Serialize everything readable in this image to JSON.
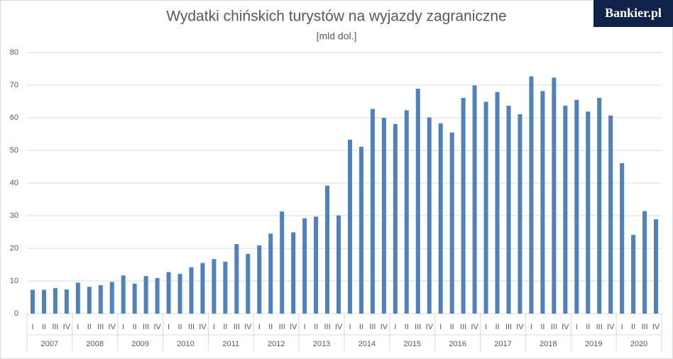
{
  "chart_data": {
    "type": "bar",
    "title": "Wydatki chińskich turystów na wyjazdy zagraniczne",
    "subtitle": "[mld dol.]",
    "logo": "Bankier.pl",
    "color": "#4f81bd",
    "grid": true,
    "ylim": [
      0,
      80
    ],
    "yticks": [
      0,
      10,
      20,
      30,
      40,
      50,
      60,
      70,
      80
    ],
    "groups": [
      "2007",
      "2008",
      "2009",
      "2010",
      "2011",
      "2012",
      "2013",
      "2014",
      "2015",
      "2016",
      "2017",
      "2018",
      "2019",
      "2020"
    ],
    "categories": [
      "I",
      "II",
      "III",
      "IV",
      "I",
      "II",
      "III",
      "IV",
      "I",
      "II",
      "III",
      "IV",
      "I",
      "II",
      "III",
      "IV",
      "I",
      "II",
      "III",
      "IV",
      "I",
      "II",
      "III",
      "IV",
      "I",
      "II",
      "III",
      "IV",
      "I",
      "II",
      "III",
      "IV",
      "I",
      "II",
      "III",
      "IV",
      "I",
      "II",
      "III",
      "IV",
      "I",
      "II",
      "III",
      "IV",
      "I",
      "II",
      "III",
      "IV",
      "I",
      "II",
      "III",
      "IV",
      "I",
      "II",
      "III",
      "IV"
    ],
    "values": [
      7.3,
      7.3,
      7.8,
      7.4,
      9.5,
      8.2,
      8.7,
      9.7,
      11.7,
      9.2,
      11.5,
      10.9,
      12.7,
      12.2,
      14.2,
      15.5,
      16.7,
      15.9,
      21.3,
      18.3,
      20.9,
      24.5,
      31.3,
      24.9,
      29.2,
      29.7,
      39.2,
      30.1,
      53.3,
      51.1,
      62.7,
      60.0,
      58.1,
      62.3,
      68.9,
      60.1,
      58.3,
      55.5,
      66.1,
      69.9,
      64.9,
      67.9,
      63.7,
      61.1,
      72.7,
      68.2,
      72.3,
      63.7,
      65.5,
      61.9,
      66.1,
      60.7,
      46.1,
      24.1,
      31.4,
      28.9
    ]
  }
}
